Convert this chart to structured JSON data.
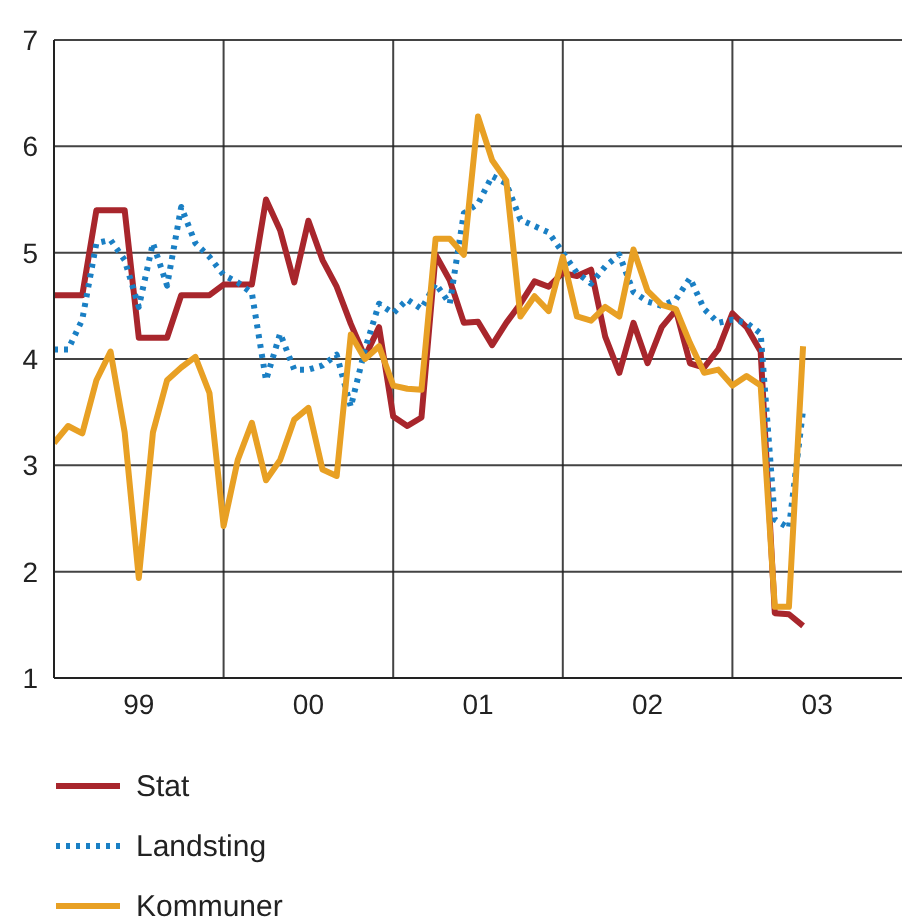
{
  "chart_data": {
    "type": "line",
    "x": [
      "1999-01",
      "1999-02",
      "1999-03",
      "1999-04",
      "1999-05",
      "1999-06",
      "1999-07",
      "1999-08",
      "1999-09",
      "1999-10",
      "1999-11",
      "1999-12",
      "2000-01",
      "2000-02",
      "2000-03",
      "2000-04",
      "2000-05",
      "2000-06",
      "2000-07",
      "2000-08",
      "2000-09",
      "2000-10",
      "2000-11",
      "2000-12",
      "2001-01",
      "2001-02",
      "2001-03",
      "2001-04",
      "2001-05",
      "2001-06",
      "2001-07",
      "2001-08",
      "2001-09",
      "2001-10",
      "2001-11",
      "2001-12",
      "2002-01",
      "2002-02",
      "2002-03",
      "2002-04",
      "2002-05",
      "2002-06",
      "2002-07",
      "2002-08",
      "2002-09",
      "2002-10",
      "2002-11",
      "2002-12",
      "2003-01",
      "2003-02",
      "2003-03",
      "2003-04",
      "2003-05",
      "2003-06"
    ],
    "series": [
      {
        "name": "Stat",
        "color": "#a8262c",
        "line_style": "solid",
        "values": [
          4.6,
          4.6,
          4.6,
          5.4,
          5.4,
          5.4,
          4.2,
          4.2,
          4.2,
          4.6,
          4.6,
          4.6,
          4.7,
          4.7,
          4.7,
          5.5,
          5.21,
          4.72,
          5.3,
          4.93,
          4.68,
          4.33,
          4.02,
          4.3,
          3.46,
          3.37,
          3.45,
          4.98,
          4.74,
          4.34,
          4.35,
          4.13,
          4.34,
          4.52,
          4.73,
          4.68,
          4.81,
          4.78,
          4.84,
          4.21,
          3.87,
          4.34,
          3.96,
          4.3,
          4.46,
          3.96,
          3.92,
          4.09,
          4.43,
          4.3,
          4.07,
          1.61,
          1.6,
          1.49
        ]
      },
      {
        "name": "Landsting",
        "color": "#1a7fc4",
        "line_style": "dotted",
        "values": [
          4.09,
          4.09,
          4.37,
          5.09,
          5.12,
          4.93,
          4.49,
          5.09,
          4.69,
          5.43,
          5.09,
          4.96,
          4.79,
          4.72,
          4.62,
          3.8,
          4.24,
          3.9,
          3.9,
          3.94,
          4.04,
          3.55,
          4.09,
          4.52,
          4.43,
          4.56,
          4.47,
          4.71,
          4.52,
          5.37,
          5.46,
          5.72,
          5.65,
          5.31,
          5.25,
          5.19,
          5.0,
          4.81,
          4.71,
          4.87,
          4.98,
          4.63,
          4.54,
          4.5,
          4.56,
          4.76,
          4.47,
          4.34,
          4.37,
          4.34,
          4.24,
          2.49,
          2.41,
          3.52
        ]
      },
      {
        "name": "Kommuner",
        "color": "#e8a024",
        "line_style": "solid",
        "values": [
          3.21,
          3.37,
          3.3,
          3.8,
          4.07,
          3.31,
          1.94,
          3.31,
          3.8,
          3.92,
          4.02,
          3.68,
          2.43,
          3.05,
          3.4,
          2.86,
          3.05,
          3.43,
          3.54,
          2.96,
          2.9,
          4.23,
          4.0,
          4.12,
          3.75,
          3.72,
          3.71,
          5.13,
          5.13,
          4.98,
          6.28,
          5.87,
          5.68,
          4.4,
          4.59,
          4.45,
          4.96,
          4.4,
          4.36,
          4.49,
          4.4,
          5.03,
          4.64,
          4.51,
          4.47,
          4.15,
          3.87,
          3.9,
          3.75,
          3.84,
          3.75,
          1.67,
          1.67,
          4.12
        ]
      }
    ],
    "xlim": [
      "1999-01",
      "2004-01"
    ],
    "xticks": [
      {
        "value": "1999-07",
        "label": "99"
      },
      {
        "value": "2000-01",
        "label": null
      },
      {
        "value": "2000-07",
        "label": "00"
      },
      {
        "value": "2001-01",
        "label": null
      },
      {
        "value": "2001-07",
        "label": "01"
      },
      {
        "value": "2002-01",
        "label": null
      },
      {
        "value": "2002-07",
        "label": "02"
      },
      {
        "value": "2003-01",
        "label": null
      },
      {
        "value": "2003-07",
        "label": "03"
      }
    ],
    "ylim": [
      1,
      7
    ],
    "yticks": [
      1,
      2,
      3,
      4,
      5,
      6,
      7
    ],
    "grid": true,
    "legend": "bottom",
    "marker": "none"
  }
}
